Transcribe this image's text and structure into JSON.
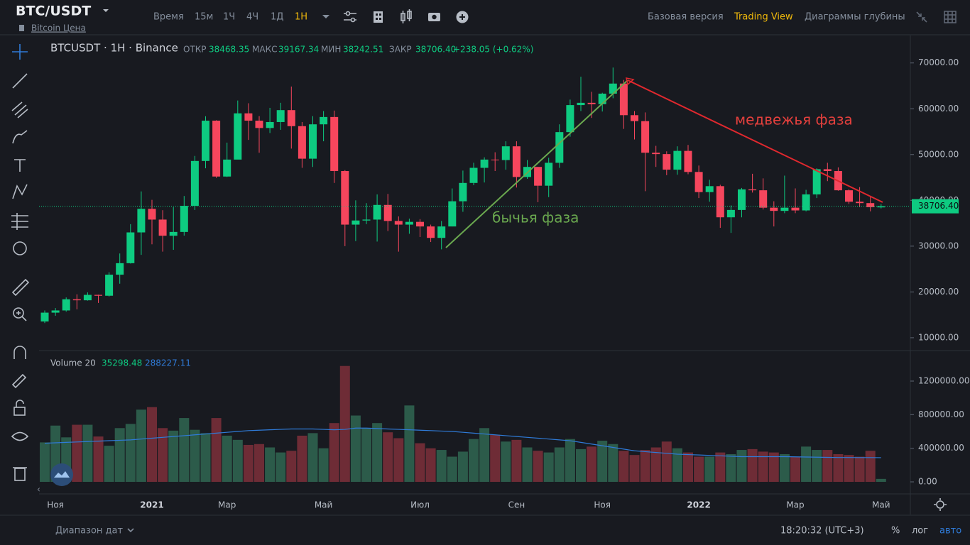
{
  "header": {
    "pair": "BTC/USDT",
    "subtitle": "Bitcoin Цена",
    "intervals": [
      "Время",
      "15м",
      "1Ч",
      "4Ч",
      "1Д",
      "1Н"
    ],
    "views": [
      "Базовая версия",
      "Trading View",
      "Диаграммы глубины"
    ]
  },
  "chart_data": [
    {
      "type": "candlestick",
      "title": "BTCUSDT · 1H · Binance",
      "ohlc_labels": [
        "ОТКР",
        "МАКС",
        "МИН",
        "ЗАКР"
      ],
      "change": "+238.05 (+0.62%)",
      "categories": [
        null,
        "Ноя",
        null,
        null,
        null,
        null,
        null,
        null,
        null,
        null,
        "2021",
        null,
        null,
        null,
        null,
        null,
        null,
        "Мар",
        null,
        null,
        null,
        null,
        null,
        null,
        null,
        null,
        "Май",
        null,
        null,
        null,
        null,
        null,
        null,
        null,
        null,
        "Июл",
        null,
        null,
        null,
        null,
        null,
        null,
        null,
        null,
        "Сен",
        null,
        null,
        null,
        null,
        null,
        null,
        null,
        "Ноя",
        null,
        null,
        null,
        null,
        null,
        null,
        null,
        null,
        "2022",
        null,
        null,
        null,
        null,
        null,
        null,
        null,
        null,
        "Мар",
        null,
        null,
        null,
        null,
        null,
        null,
        null,
        "Май"
      ],
      "open": [
        13550,
        15480,
        15960,
        18400,
        18180,
        19360,
        19170,
        23770,
        26280,
        33000,
        38150,
        35800,
        32270,
        33100,
        38800,
        48600,
        57400,
        45200,
        48900,
        59000,
        57400,
        55800,
        57100,
        59700,
        56200,
        49100,
        56600,
        58200,
        46400,
        34700,
        35600,
        35800,
        39000,
        35500,
        34700,
        35300,
        34300,
        31800,
        34300,
        39800,
        43800,
        47100,
        48900,
        48800,
        51800,
        45100,
        47300,
        43200,
        48200,
        54900,
        60800,
        61300,
        61000,
        63300,
        65500,
        58600,
        57300,
        50400,
        50100,
        46700,
        50800,
        46200,
        41800,
        43100,
        36300,
        37900,
        42400,
        42200,
        38400,
        37700,
        38400,
        37800,
        41300,
        46800,
        46400,
        42200,
        39700,
        39400,
        38468.35
      ],
      "high": [
        15960,
        16480,
        18800,
        19480,
        19900,
        19400,
        24300,
        28400,
        34800,
        41950,
        40100,
        37850,
        38500,
        40950,
        49700,
        58350,
        57500,
        52600,
        61800,
        61200,
        58400,
        60200,
        61300,
        64850,
        57100,
        58400,
        59500,
        59600,
        46600,
        40000,
        39400,
        41300,
        41400,
        36500,
        36000,
        35900,
        34700,
        35500,
        42600,
        46500,
        48200,
        49400,
        50500,
        52900,
        52900,
        48800,
        47300,
        49300,
        56600,
        62000,
        67000,
        63700,
        63500,
        69000,
        66300,
        59500,
        59200,
        51900,
        50700,
        51800,
        52100,
        47600,
        44500,
        43400,
        38900,
        42700,
        45800,
        44800,
        39800,
        45400,
        42600,
        42300,
        47000,
        48200,
        47200,
        42400,
        42900,
        40800,
        39167.34
      ],
      "low": [
        13200,
        14800,
        15700,
        16200,
        18100,
        17600,
        19000,
        21800,
        26200,
        28100,
        30400,
        28800,
        29200,
        32300,
        37900,
        47000,
        44900,
        45100,
        49300,
        53200,
        50400,
        54700,
        55400,
        51300,
        47100,
        47300,
        52900,
        43800,
        30000,
        31100,
        34800,
        31000,
        33300,
        28800,
        32700,
        32000,
        30900,
        29300,
        34300,
        37500,
        43300,
        43900,
        46400,
        46700,
        42800,
        44700,
        39600,
        40700,
        47100,
        53900,
        59500,
        58000,
        59400,
        62300,
        55600,
        53300,
        42000,
        47300,
        45500,
        45600,
        45700,
        40500,
        39700,
        34000,
        32900,
        36300,
        41700,
        38000,
        34300,
        37200,
        37200,
        37600,
        40500,
        44200,
        42100,
        39200,
        38500,
        37600,
        38242.51
      ],
      "close": [
        15480,
        15960,
        18400,
        18180,
        19360,
        19170,
        23770,
        26280,
        33000,
        38150,
        35800,
        32270,
        33100,
        38800,
        48600,
        57400,
        45200,
        48900,
        59000,
        57400,
        55800,
        57100,
        59700,
        56200,
        49100,
        56600,
        58200,
        46400,
        34700,
        35600,
        35800,
        39000,
        35500,
        34700,
        35300,
        34300,
        31800,
        34300,
        39800,
        43800,
        47100,
        48900,
        48800,
        51800,
        45100,
        47300,
        43200,
        48200,
        54900,
        60800,
        61300,
        61000,
        63300,
        65500,
        58600,
        57300,
        50400,
        50100,
        46700,
        50800,
        46200,
        41800,
        43100,
        36300,
        37900,
        42400,
        42200,
        38400,
        37700,
        38400,
        37800,
        41300,
        46800,
        46400,
        42200,
        39700,
        39400,
        38500,
        38706.4
      ],
      "up_color": "#0ecb81",
      "down_color": "#f6465d",
      "last_price": {
        "value": 38706.4,
        "label": "38706.40"
      },
      "ylim": [
        7200,
        76000
      ],
      "yticks": [
        {
          "value": 10000,
          "label": "10000.00"
        },
        {
          "value": 20000,
          "label": "20000.00"
        },
        {
          "value": 30000,
          "label": "30000.00"
        },
        {
          "value": 40000,
          "label": "40000.00"
        },
        {
          "value": 50000,
          "label": "50000.00"
        },
        {
          "value": 60000,
          "label": "60000.00"
        },
        {
          "value": 70000,
          "label": "70000.00"
        }
      ],
      "grid": false,
      "annotations": [
        "бычья фаза",
        "медвежья фаза"
      ]
    },
    {
      "type": "bar",
      "title": "Volume 20",
      "series": [
        {
          "values": [
            470000,
            670000,
            530000,
            680000,
            680000,
            540000,
            430000,
            640000,
            690000,
            860000,
            890000,
            640000,
            610000,
            760000,
            620000,
            580000,
            760000,
            550000,
            500000,
            440000,
            450000,
            410000,
            350000,
            370000,
            550000,
            580000,
            400000,
            700000,
            1380000,
            790000,
            640000,
            700000,
            590000,
            520000,
            910000,
            460000,
            400000,
            380000,
            300000,
            360000,
            510000,
            640000,
            560000,
            480000,
            500000,
            410000,
            370000,
            350000,
            410000,
            510000,
            390000,
            420000,
            490000,
            450000,
            370000,
            320000,
            380000,
            410000,
            480000,
            400000,
            350000,
            300000,
            300000,
            350000,
            330000,
            380000,
            390000,
            360000,
            350000,
            330000,
            300000,
            420000,
            380000,
            380000,
            330000,
            320000,
            300000,
            370000,
            35298.48
          ],
          "up_color": "#2c5b4a",
          "down_color": "#6e2c36"
        },
        {
          "type": "line",
          "color": "#2f7bd8",
          "values": [
            460000,
            465000,
            470000,
            475000,
            480000,
            485000,
            490000,
            495000,
            500000,
            510000,
            520000,
            530000,
            540000,
            550000,
            560000,
            570000,
            580000,
            590000,
            600000,
            610000,
            615000,
            620000,
            625000,
            630000,
            630000,
            630000,
            625000,
            620000,
            625000,
            640000,
            640000,
            635000,
            630000,
            625000,
            620000,
            615000,
            610000,
            605000,
            600000,
            590000,
            580000,
            570000,
            560000,
            550000,
            540000,
            530000,
            520000,
            510000,
            500000,
            490000,
            470000,
            450000,
            430000,
            410000,
            390000,
            370000,
            360000,
            350000,
            340000,
            330000,
            325000,
            320000,
            315000,
            310000,
            305000,
            300000,
            300000,
            300000,
            300000,
            300000,
            298000,
            296000,
            294000,
            292000,
            290000,
            290000,
            289000,
            289000,
            288227.11
          ]
        }
      ],
      "ylim": [
        -135000,
        1555000
      ],
      "yticks": [
        {
          "value": 0,
          "label": "0.00"
        },
        {
          "value": 400000,
          "label": "400000.00"
        },
        {
          "value": 800000,
          "label": "800000.00"
        },
        {
          "value": 1200000,
          "label": "1200000.00"
        }
      ]
    }
  ],
  "footer": {
    "range": "Диапазон дат",
    "time": "18:20:32 (UTC+3)",
    "scale": [
      "%",
      "лог",
      "авто"
    ]
  }
}
